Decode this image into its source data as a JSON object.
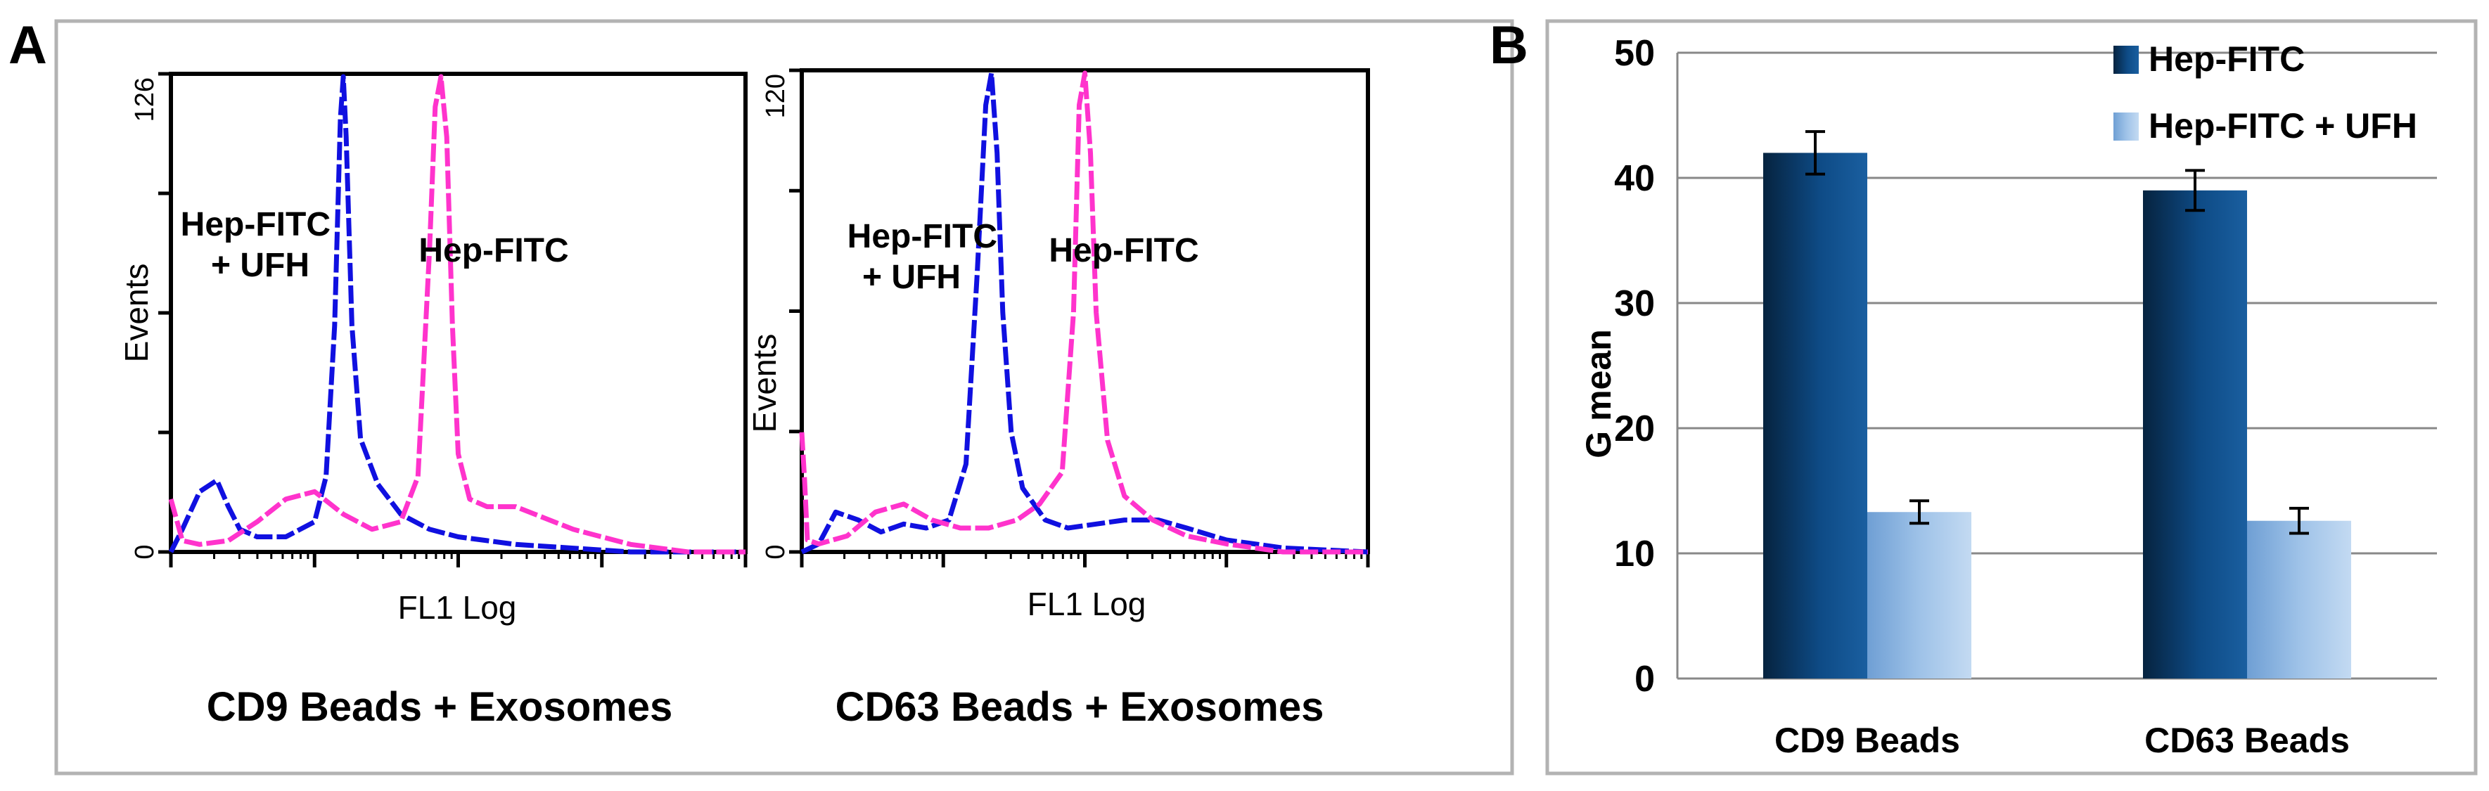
{
  "panel_a": {
    "label": "A",
    "border_color": "#b3b3b3"
  },
  "panel_b": {
    "label": "B",
    "border_color": "#b3b3b3"
  },
  "chart_data": [
    {
      "type": "line",
      "title": "CD9 Beads + Exosomes",
      "xlabel": "FL1 Log",
      "ylabel": "Events",
      "y_tick_labels": [
        "0",
        "126"
      ],
      "ylim": [
        0,
        126
      ],
      "xlim": [
        0,
        1
      ],
      "annotations": [
        {
          "text": "Hep-FITC",
          "line2": "+ UFH"
        },
        {
          "text": "Hep-FITC",
          "line2": ""
        }
      ],
      "series": [
        {
          "name": "Hep-FITC + UFH",
          "color": "#1010e0",
          "dash": "solid-dashed",
          "x": [
            0.0,
            0.02,
            0.05,
            0.08,
            0.1,
            0.12,
            0.15,
            0.2,
            0.25,
            0.27,
            0.285,
            0.295,
            0.3,
            0.305,
            0.315,
            0.33,
            0.36,
            0.4,
            0.45,
            0.5,
            0.55,
            0.6,
            0.7,
            0.8,
            0.9,
            1.0
          ],
          "y": [
            0,
            6,
            16,
            19,
            12,
            6,
            4,
            4,
            8,
            20,
            60,
            115,
            126,
            110,
            60,
            30,
            18,
            10,
            6,
            4,
            3,
            2,
            1,
            0,
            0,
            0
          ]
        },
        {
          "name": "Hep-FITC",
          "color": "#ff33cc",
          "dash": "solid-dashed",
          "x": [
            0.0,
            0.02,
            0.05,
            0.1,
            0.15,
            0.2,
            0.25,
            0.3,
            0.35,
            0.4,
            0.43,
            0.45,
            0.46,
            0.47,
            0.48,
            0.49,
            0.5,
            0.52,
            0.55,
            0.6,
            0.65,
            0.7,
            0.8,
            0.9,
            1.0
          ],
          "y": [
            14,
            3,
            2,
            3,
            8,
            14,
            16,
            10,
            6,
            8,
            20,
            80,
            118,
            126,
            110,
            60,
            26,
            14,
            12,
            12,
            9,
            6,
            2,
            0,
            0
          ]
        }
      ]
    },
    {
      "type": "line",
      "title": "CD63 Beads + Exosomes",
      "xlabel": "FL1 Log",
      "ylabel": "Events",
      "y_tick_labels": [
        "0",
        "120"
      ],
      "ylim": [
        0,
        120
      ],
      "xlim": [
        0,
        1
      ],
      "annotations": [
        {
          "text": "Hep-FITC",
          "line2": "+ UFH"
        },
        {
          "text": "Hep-FITC",
          "line2": ""
        }
      ],
      "series": [
        {
          "name": "Hep-FITC + UFH",
          "color": "#1010e0",
          "dash": "solid-dashed",
          "x": [
            0.0,
            0.03,
            0.06,
            0.1,
            0.14,
            0.18,
            0.22,
            0.26,
            0.29,
            0.31,
            0.325,
            0.335,
            0.345,
            0.355,
            0.37,
            0.39,
            0.43,
            0.47,
            0.52,
            0.57,
            0.63,
            0.68,
            0.75,
            0.85,
            1.0
          ],
          "y": [
            0,
            2,
            10,
            8,
            5,
            7,
            6,
            8,
            22,
            70,
            112,
            120,
            100,
            60,
            30,
            16,
            8,
            6,
            7,
            8,
            8,
            6,
            3,
            1,
            0
          ]
        },
        {
          "name": "Hep-FITC",
          "color": "#ff33cc",
          "dash": "solid-dashed",
          "x": [
            0.0,
            0.005,
            0.01,
            0.03,
            0.08,
            0.13,
            0.18,
            0.23,
            0.28,
            0.33,
            0.38,
            0.42,
            0.46,
            0.48,
            0.49,
            0.5,
            0.51,
            0.52,
            0.54,
            0.57,
            0.62,
            0.68,
            0.75,
            0.85,
            1.0
          ],
          "y": [
            30,
            18,
            3,
            2,
            4,
            10,
            12,
            8,
            6,
            6,
            8,
            12,
            20,
            60,
            112,
            120,
            100,
            60,
            28,
            14,
            8,
            4,
            2,
            0,
            0
          ]
        }
      ]
    },
    {
      "type": "bar",
      "title": "",
      "xlabel": "",
      "ylabel": "G mean",
      "categories": [
        "CD9 Beads",
        "CD63 Beads"
      ],
      "ylim": [
        0,
        50
      ],
      "yticks": [
        "0",
        "10",
        "20",
        "30",
        "40",
        "50"
      ],
      "legend_position": "top-right",
      "grid": true,
      "series": [
        {
          "name": "Hep-FITC",
          "values": [
            42,
            39
          ],
          "errors": [
            1.7,
            1.6
          ],
          "color": "#0d4d8c"
        },
        {
          "name": "Hep-FITC + UFH",
          "values": [
            13.3,
            12.6
          ],
          "errors": [
            0.9,
            1.0
          ],
          "color": "#9cc0e6"
        }
      ]
    }
  ]
}
